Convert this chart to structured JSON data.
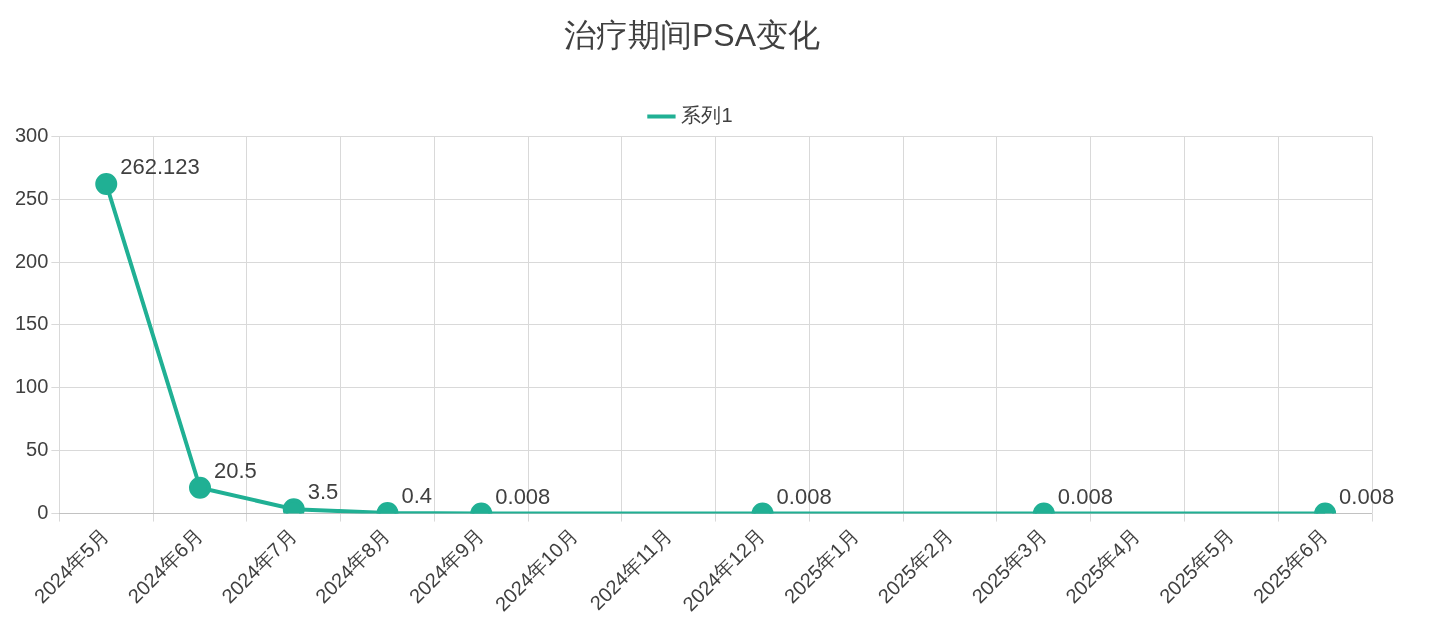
{
  "chart_data": {
    "type": "line",
    "title": "治疗期间PSA变化",
    "categories": [
      "2024年5月",
      "2024年6月",
      "2024年7月",
      "2024年8月",
      "2024年9月",
      "2024年10月",
      "2024年11月",
      "2024年12月",
      "2025年1月",
      "2025年2月",
      "2025年3月",
      "2025年4月",
      "2025年5月",
      "2025年6月"
    ],
    "series": [
      {
        "name": "系列1",
        "color": "#20b094",
        "values": [
          262.123,
          20.5,
          3.5,
          0.4,
          0.008,
          null,
          null,
          0.008,
          null,
          null,
          0.008,
          null,
          null,
          0.008
        ]
      }
    ],
    "ylim": [
      0,
      300
    ],
    "yticks": [
      0,
      50,
      100,
      150,
      200,
      250,
      300
    ],
    "grid": true,
    "legend": "top",
    "marker": "circle",
    "line_style": "solid",
    "data_labels": true
  }
}
